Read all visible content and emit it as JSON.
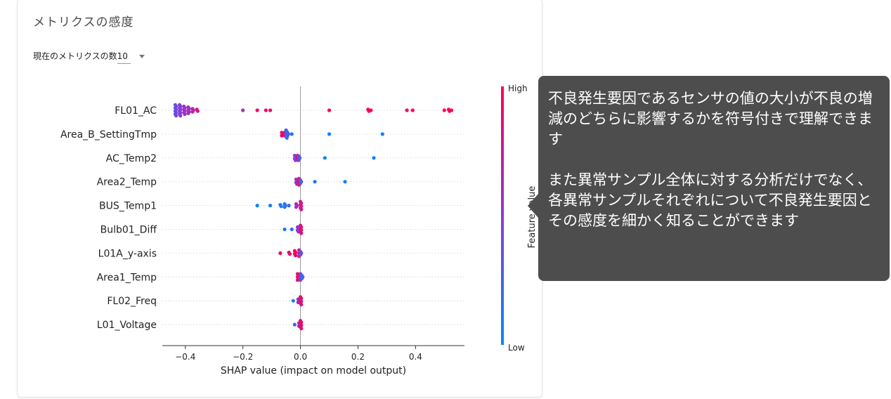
{
  "card": {
    "title": "メトリクスの感度",
    "metric_count_label": "現在のメトリクスの数",
    "metric_count_value": "10"
  },
  "tooltip": {
    "paragraph1": "不良発生要因であるセンサの値の大小が不良の増減のどちらに影響するかを符号付きで理解できます",
    "paragraph2": "また異常サンプル全体に対する分析だけでなく、各異常サンプルそれぞれについて不良発生要因とその感度を細かく知ることができます"
  },
  "chart_data": {
    "type": "scatter",
    "subtype": "shap-beeswarm",
    "xlabel": "SHAP value (impact on model output)",
    "xlim": [
      -0.48,
      0.57
    ],
    "xticks": [
      -0.4,
      -0.2,
      0.0,
      0.2,
      0.4
    ],
    "xtick_labels": [
      "−0.4",
      "−0.2",
      "0.0",
      "0.2",
      "0.4"
    ],
    "colorbar": {
      "label": "Feature value",
      "high_label": "High",
      "low_label": "Low",
      "high_color": "#ff0052",
      "low_color": "#008bfb"
    },
    "features": [
      {
        "name": "FL01_AC",
        "points": [
          {
            "x": -0.435,
            "v": 0.4,
            "n": 8
          },
          {
            "x": -0.42,
            "v": 0.5,
            "n": 8
          },
          {
            "x": -0.405,
            "v": 0.55,
            "n": 6
          },
          {
            "x": -0.39,
            "v": 0.6,
            "n": 5
          },
          {
            "x": -0.375,
            "v": 0.7,
            "n": 3
          },
          {
            "x": -0.36,
            "v": 0.8,
            "n": 2
          },
          {
            "x": -0.2,
            "v": 0.6,
            "n": 1
          },
          {
            "x": -0.15,
            "v": 0.9,
            "n": 1
          },
          {
            "x": -0.12,
            "v": 0.9,
            "n": 1
          },
          {
            "x": -0.105,
            "v": 0.9,
            "n": 1
          },
          {
            "x": 0.1,
            "v": 1,
            "n": 1
          },
          {
            "x": 0.235,
            "v": 1,
            "n": 2
          },
          {
            "x": 0.245,
            "v": 1,
            "n": 1
          },
          {
            "x": 0.37,
            "v": 1,
            "n": 1
          },
          {
            "x": 0.39,
            "v": 1,
            "n": 1
          },
          {
            "x": 0.5,
            "v": 1,
            "n": 1
          },
          {
            "x": 0.515,
            "v": 1,
            "n": 2
          },
          {
            "x": 0.525,
            "v": 1,
            "n": 1
          }
        ]
      },
      {
        "name": "Area_B_SettingTmp",
        "points": [
          {
            "x": -0.065,
            "v": 0.95,
            "n": 3
          },
          {
            "x": -0.055,
            "v": 0.9,
            "n": 3
          },
          {
            "x": -0.05,
            "v": 0.2,
            "n": 6
          },
          {
            "x": -0.045,
            "v": 0.3,
            "n": 3
          },
          {
            "x": -0.03,
            "v": 0.1,
            "n": 1
          },
          {
            "x": 0.1,
            "v": 0.05,
            "n": 1
          },
          {
            "x": 0.285,
            "v": 0.05,
            "n": 1
          }
        ]
      },
      {
        "name": "AC_Temp2",
        "points": [
          {
            "x": -0.02,
            "v": 0.5,
            "n": 4
          },
          {
            "x": -0.01,
            "v": 0.8,
            "n": 4
          },
          {
            "x": -0.005,
            "v": 0.3,
            "n": 3
          },
          {
            "x": 0.085,
            "v": 0.05,
            "n": 1
          },
          {
            "x": 0.255,
            "v": 0.05,
            "n": 1
          }
        ]
      },
      {
        "name": "Area2_Temp",
        "points": [
          {
            "x": -0.015,
            "v": 0.6,
            "n": 4
          },
          {
            "x": -0.005,
            "v": 0.9,
            "n": 5
          },
          {
            "x": 0.0,
            "v": 0.3,
            "n": 3
          },
          {
            "x": 0.05,
            "v": 0.1,
            "n": 1
          },
          {
            "x": 0.155,
            "v": 0.05,
            "n": 1
          }
        ]
      },
      {
        "name": "BUS_Temp1",
        "points": [
          {
            "x": -0.15,
            "v": 0.05,
            "n": 1
          },
          {
            "x": -0.105,
            "v": 0.1,
            "n": 1
          },
          {
            "x": -0.07,
            "v": 0.1,
            "n": 2
          },
          {
            "x": -0.055,
            "v": 0.15,
            "n": 3
          },
          {
            "x": -0.04,
            "v": 0.2,
            "n": 1
          },
          {
            "x": -0.015,
            "v": 0.6,
            "n": 3
          },
          {
            "x": 0.0,
            "v": 0.8,
            "n": 6
          }
        ]
      },
      {
        "name": "Bulb01_Diff",
        "points": [
          {
            "x": -0.055,
            "v": 0.1,
            "n": 1
          },
          {
            "x": -0.03,
            "v": 0.2,
            "n": 1
          },
          {
            "x": -0.01,
            "v": 0.5,
            "n": 4
          },
          {
            "x": 0.0,
            "v": 0.85,
            "n": 6
          }
        ]
      },
      {
        "name": "L01A_y-axis",
        "points": [
          {
            "x": -0.07,
            "v": 0.95,
            "n": 1
          },
          {
            "x": -0.04,
            "v": 0.9,
            "n": 2
          },
          {
            "x": -0.02,
            "v": 0.95,
            "n": 4
          },
          {
            "x": -0.005,
            "v": 0.7,
            "n": 5
          },
          {
            "x": 0.0,
            "v": 0.4,
            "n": 3
          }
        ]
      },
      {
        "name": "Area1_Temp",
        "points": [
          {
            "x": -0.01,
            "v": 0.9,
            "n": 5
          },
          {
            "x": 0.0,
            "v": 0.5,
            "n": 5
          },
          {
            "x": 0.005,
            "v": 0.2,
            "n": 3
          }
        ]
      },
      {
        "name": "FL02_Freq",
        "points": [
          {
            "x": -0.025,
            "v": 0.1,
            "n": 1
          },
          {
            "x": -0.008,
            "v": 0.6,
            "n": 3
          },
          {
            "x": 0.0,
            "v": 0.85,
            "n": 6
          }
        ]
      },
      {
        "name": "L01_Voltage",
        "points": [
          {
            "x": -0.02,
            "v": 0.2,
            "n": 1
          },
          {
            "x": -0.005,
            "v": 0.6,
            "n": 3
          },
          {
            "x": 0.0,
            "v": 0.9,
            "n": 6
          }
        ]
      }
    ]
  }
}
